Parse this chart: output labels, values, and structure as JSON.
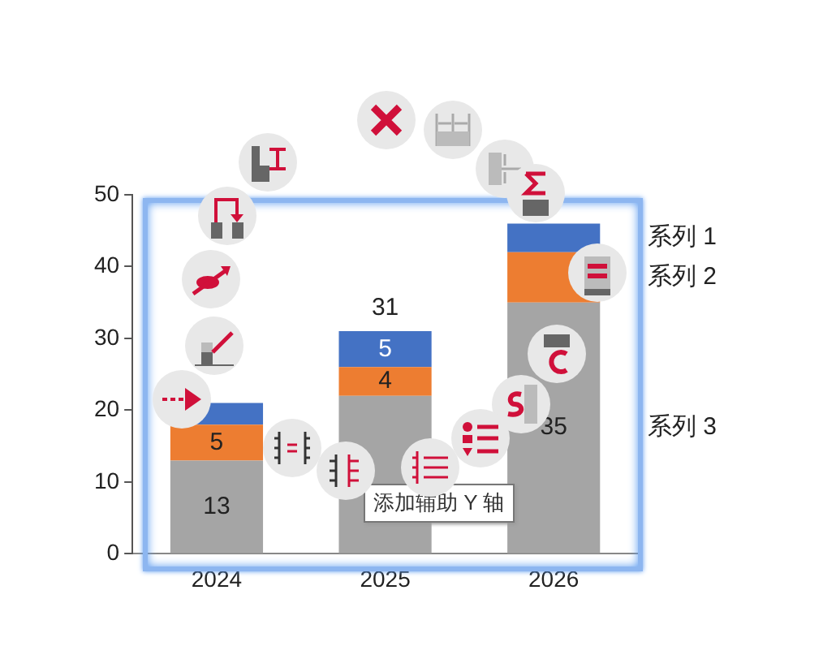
{
  "chart_data": {
    "type": "bar",
    "stacked": true,
    "categories": [
      "2024",
      "2025",
      "2026"
    ],
    "series": [
      {
        "name": "系列 3",
        "color": "#a5a5a5",
        "values": [
          13,
          22,
          35
        ],
        "value_labels": [
          "13",
          null,
          "35"
        ]
      },
      {
        "name": "系列 2",
        "color": "#ed7d31",
        "values": [
          5,
          4,
          7
        ],
        "value_labels": [
          "5",
          "4",
          null
        ]
      },
      {
        "name": "系列 1",
        "color": "#4472c4",
        "values": [
          3,
          5,
          4
        ],
        "value_labels": [
          null,
          "5",
          null
        ]
      }
    ],
    "ylim": [
      0,
      50
    ],
    "yticks": [
      0,
      10,
      20,
      30,
      40,
      50
    ],
    "grid": false,
    "legend": "right",
    "totals": [
      null,
      "31",
      null
    ],
    "annotations": [
      "添加辅助 Y 轴"
    ]
  }
}
